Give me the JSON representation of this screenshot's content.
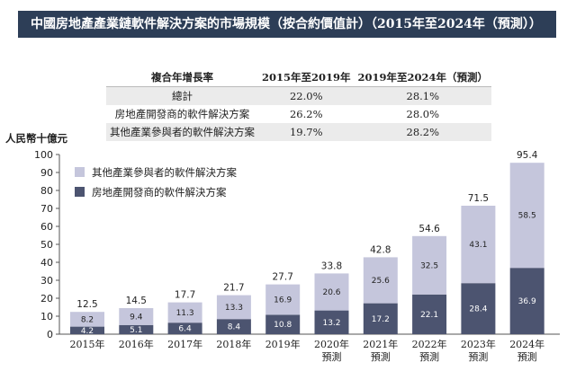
{
  "title": "中國房地產產業鏈軟件解決方案的市場規模（按合約價值計）（2015年至2024年（預測））",
  "table": {
    "headers": [
      "複合年增長率",
      "2015年至2019年",
      "2019年至2024年（預測）"
    ],
    "rows": [
      [
        "總計",
        "22.0%",
        "28.1%"
      ],
      [
        "房地產開發商的軟件解決方案",
        "26.2%",
        "28.0%"
      ],
      [
        "其他產業參與者的軟件解決方案",
        "19.7%",
        "28.2%"
      ]
    ]
  },
  "colors": {
    "title_bg": "#2d3e57",
    "series_top": "#c5c6dc",
    "series_bottom": "#4c5470"
  },
  "chart_data": {
    "type": "bar",
    "stacked": true,
    "ylabel": "人民幣十億元",
    "ylim": [
      0,
      100
    ],
    "yticks": [
      0,
      10,
      20,
      30,
      40,
      50,
      60,
      70,
      80,
      90,
      100
    ],
    "grid": false,
    "legend_position": "top-left",
    "categories": [
      [
        "2015年"
      ],
      [
        "2016年"
      ],
      [
        "2017年"
      ],
      [
        "2018年"
      ],
      [
        "2019年"
      ],
      [
        "2020年",
        "預測"
      ],
      [
        "2021年",
        "預測"
      ],
      [
        "2022年",
        "預測"
      ],
      [
        "2023年",
        "預測"
      ],
      [
        "2024年",
        "預測"
      ]
    ],
    "series": [
      {
        "name": "房地產開發商的軟件解決方案",
        "values": [
          4.2,
          5.1,
          6.4,
          8.4,
          10.8,
          13.2,
          17.2,
          22.1,
          28.4,
          36.9
        ]
      },
      {
        "name": "其他產業參與者的軟件解決方案",
        "values": [
          8.2,
          9.4,
          11.3,
          13.3,
          16.9,
          20.6,
          25.6,
          32.5,
          43.1,
          58.5
        ]
      }
    ],
    "totals": [
      12.5,
      14.5,
      17.7,
      21.7,
      27.7,
      33.8,
      42.8,
      54.6,
      71.5,
      95.4
    ]
  }
}
